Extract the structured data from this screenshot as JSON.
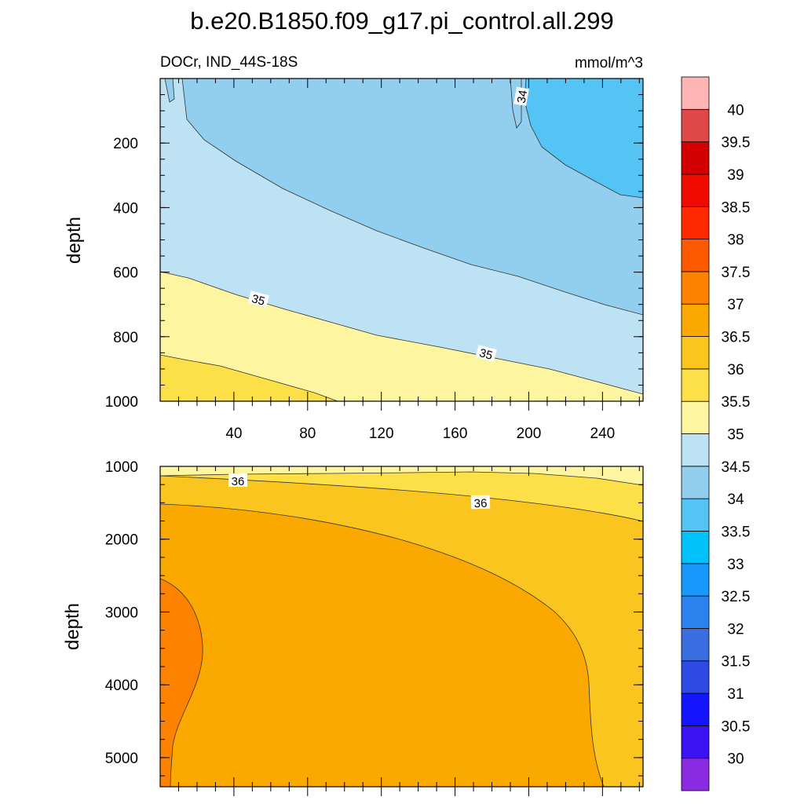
{
  "chart_data": {
    "type": "heatmap",
    "title": "b.e20.B1850.f09_g17.pi_control.all.299",
    "left_label": "DOCr, IND_44S-18S",
    "units": "mmol/m^3",
    "panels": [
      {
        "name": "upper",
        "ylabel": "depth",
        "xlim": [
          0,
          262
        ],
        "ylim": [
          1000,
          0
        ],
        "x_ticks": [
          40,
          80,
          120,
          160,
          200,
          240
        ],
        "y_ticks": [
          200,
          400,
          600,
          800,
          1000
        ],
        "contour_labels": [
          "34",
          "35",
          "35"
        ]
      },
      {
        "name": "lower",
        "ylabel": "depth",
        "xlim": [
          0,
          262
        ],
        "ylim": [
          5400,
          1000
        ],
        "x_ticks": [],
        "y_ticks": [
          1000,
          2000,
          3000,
          4000,
          5000
        ],
        "contour_labels": [
          "36",
          "36"
        ]
      }
    ],
    "colorbar": {
      "levels": [
        "30",
        "30.5",
        "31",
        "31.5",
        "32",
        "32.5",
        "33",
        "33.5",
        "34",
        "34.5",
        "35",
        "35.5",
        "36",
        "36.5",
        "37",
        "37.5",
        "38",
        "38.5",
        "39",
        "39.5",
        "40"
      ],
      "colors": [
        "#8a2be2",
        "#3b12f2",
        "#1414ff",
        "#2e4ae6",
        "#3a6ee0",
        "#2a82ee",
        "#1798fa",
        "#00c2f8",
        "#54c4f4",
        "#92cfee",
        "#bde2f4",
        "#fdf5a0",
        "#fde048",
        "#fbc520",
        "#fba800",
        "#fd8200",
        "#fd5a00",
        "#ff2a00",
        "#f00a00",
        "#d20000",
        "#e04848",
        "#ffb4b4"
      ]
    }
  }
}
